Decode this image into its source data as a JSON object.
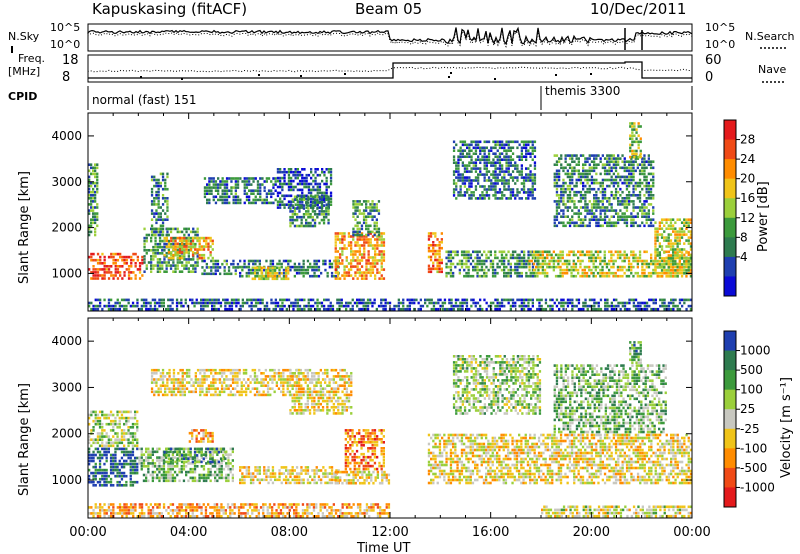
{
  "header": {
    "station": "Kapuskasing (fitACF)",
    "beam": "Beam 05",
    "date": "10/Dec/2011"
  },
  "top_panels": {
    "nsky_label": "N.Sky",
    "nsearch_label": "N.Search",
    "noise_ticks": [
      "10^5",
      "10^0"
    ],
    "freq_label_1": "Freq.",
    "freq_label_2": "[MHz]",
    "freq_ticks": [
      "18",
      "8"
    ],
    "nave_label": "Nave",
    "nave_ticks": [
      "60",
      "0"
    ],
    "cpid_label": "CPID",
    "cpid_segments": [
      {
        "label": "normal (fast) 151",
        "start_hour": 0
      },
      {
        "label": "themis 3300",
        "start_hour": 18
      }
    ]
  },
  "colors": {
    "power_scale": [
      "#e41a1c",
      "#f04a16",
      "#ff8c00",
      "#f0c419",
      "#9bcf3b",
      "#3c9a3c",
      "#2e7b4f",
      "#1f3fb0",
      "#0a0ad6"
    ],
    "velocity_scale": [
      "#1f3fb0",
      "#2e7b4f",
      "#3c9a3c",
      "#9bcf3b",
      "#c8c8c0",
      "#f0c419",
      "#ff8c00",
      "#f04a16",
      "#e41a1c"
    ]
  },
  "chart_data": [
    {
      "type": "heatmap",
      "name": "power",
      "ylabel": "Slant Range [km]",
      "colorbar_label": "Power [dB]",
      "colorbar_ticks": [
        "28",
        "24",
        "20",
        "16",
        "12",
        "8",
        "4"
      ],
      "y_ticks": [
        "4000",
        "3000",
        "2000",
        "1000"
      ],
      "x_ticks": [
        "00:00",
        "04:00",
        "08:00",
        "12:00",
        "16:00",
        "20:00",
        "00:00"
      ],
      "xlim_hours": [
        0,
        24
      ],
      "ylim_km": [
        180,
        4500
      ],
      "bands": [
        {
          "t0": 0.0,
          "t1": 2.2,
          "r0": 850,
          "r1": 1450,
          "level": 0.85
        },
        {
          "t0": 0.0,
          "t1": 0.4,
          "r0": 1800,
          "r1": 3400,
          "level": 0.35
        },
        {
          "t0": 2.2,
          "t1": 4.4,
          "r0": 1000,
          "r1": 2000,
          "level": 0.35
        },
        {
          "t0": 2.5,
          "t1": 3.2,
          "r0": 1800,
          "r1": 3200,
          "level": 0.3
        },
        {
          "t0": 3.0,
          "t1": 5.0,
          "r0": 1300,
          "r1": 1800,
          "level": 0.65
        },
        {
          "t0": 4.5,
          "t1": 6.0,
          "r0": 950,
          "r1": 1300,
          "level": 0.3
        },
        {
          "t0": 4.6,
          "t1": 7.5,
          "r0": 2500,
          "r1": 3100,
          "level": 0.25
        },
        {
          "t0": 6.0,
          "t1": 10.0,
          "r0": 900,
          "r1": 1300,
          "level": 0.25
        },
        {
          "t0": 6.5,
          "t1": 8.0,
          "r0": 850,
          "r1": 1150,
          "level": 0.55
        },
        {
          "t0": 7.5,
          "t1": 9.7,
          "r0": 2400,
          "r1": 3300,
          "level": 0.2
        },
        {
          "t0": 8.0,
          "t1": 9.6,
          "r0": 2000,
          "r1": 2700,
          "level": 0.3
        },
        {
          "t0": 9.8,
          "t1": 11.8,
          "r0": 850,
          "r1": 1900,
          "level": 0.7
        },
        {
          "t0": 10.5,
          "t1": 11.6,
          "r0": 1800,
          "r1": 2600,
          "level": 0.35
        },
        {
          "t0": 13.5,
          "t1": 14.1,
          "r0": 1000,
          "r1": 1900,
          "level": 0.75
        },
        {
          "t0": 14.5,
          "t1": 17.8,
          "r0": 2600,
          "r1": 3900,
          "level": 0.25
        },
        {
          "t0": 14.2,
          "t1": 17.9,
          "r0": 900,
          "r1": 1500,
          "level": 0.35
        },
        {
          "t0": 17.5,
          "t1": 24.0,
          "r0": 900,
          "r1": 1500,
          "level": 0.55
        },
        {
          "t0": 18.5,
          "t1": 22.5,
          "r0": 2000,
          "r1": 3600,
          "level": 0.3
        },
        {
          "t0": 21.5,
          "t1": 22.0,
          "r0": 3500,
          "r1": 4300,
          "level": 0.5
        },
        {
          "t0": 22.5,
          "t1": 24.0,
          "r0": 900,
          "r1": 2200,
          "level": 0.55
        },
        {
          "t0": 0.0,
          "t1": 24.0,
          "r0": 180,
          "r1": 450,
          "level": 0.2
        }
      ]
    },
    {
      "type": "heatmap",
      "name": "velocity",
      "ylabel": "Slant Range [km]",
      "colorbar_label": "Velocity [m s⁻¹]",
      "colorbar_ticks": [
        "1000",
        "500",
        "100",
        "25",
        "-25",
        "-100",
        "-500",
        "-1000"
      ],
      "y_ticks": [
        "4000",
        "3000",
        "2000",
        "1000"
      ],
      "x_ticks": [
        "00:00",
        "04:00",
        "08:00",
        "12:00",
        "16:00",
        "20:00",
        "00:00"
      ],
      "xlabel": "Time UT",
      "xlim_hours": [
        0,
        24
      ],
      "ylim_km": [
        180,
        4500
      ],
      "bands": [
        {
          "t0": 0.0,
          "t1": 2.0,
          "r0": 850,
          "r1": 1700,
          "level": 0.9
        },
        {
          "t0": 0.0,
          "t1": 2.0,
          "r0": 1700,
          "r1": 2500,
          "level": 0.55
        },
        {
          "t0": 2.0,
          "t1": 5.8,
          "r0": 950,
          "r1": 1700,
          "level": 0.65
        },
        {
          "t0": 3.0,
          "t1": 5.5,
          "r0": 1350,
          "r1": 1700,
          "level": 0.75
        },
        {
          "t0": 4.0,
          "t1": 5.0,
          "r0": 1800,
          "r1": 2100,
          "level": 0.3
        },
        {
          "t0": 2.5,
          "t1": 8.5,
          "r0": 2800,
          "r1": 3400,
          "level": 0.45
        },
        {
          "t0": 6.0,
          "t1": 10.0,
          "r0": 900,
          "r1": 1300,
          "level": 0.45
        },
        {
          "t0": 8.0,
          "t1": 10.5,
          "r0": 2400,
          "r1": 3400,
          "level": 0.45
        },
        {
          "t0": 10.2,
          "t1": 11.8,
          "r0": 1200,
          "r1": 2100,
          "level": 0.25
        },
        {
          "t0": 9.8,
          "t1": 12.0,
          "r0": 900,
          "r1": 1200,
          "level": 0.45
        },
        {
          "t0": 0.0,
          "t1": 12.0,
          "r0": 180,
          "r1": 500,
          "level": 0.35
        },
        {
          "t0": 13.5,
          "t1": 24.0,
          "r0": 900,
          "r1": 2000,
          "level": 0.45
        },
        {
          "t0": 14.5,
          "t1": 18.0,
          "r0": 2400,
          "r1": 3700,
          "level": 0.6
        },
        {
          "t0": 18.5,
          "t1": 23.0,
          "r0": 2000,
          "r1": 3500,
          "level": 0.65
        },
        {
          "t0": 21.5,
          "t1": 22.0,
          "r0": 3500,
          "r1": 4000,
          "level": 0.7
        },
        {
          "t0": 18.0,
          "t1": 24.0,
          "r0": 180,
          "r1": 450,
          "level": 0.5
        }
      ]
    }
  ]
}
